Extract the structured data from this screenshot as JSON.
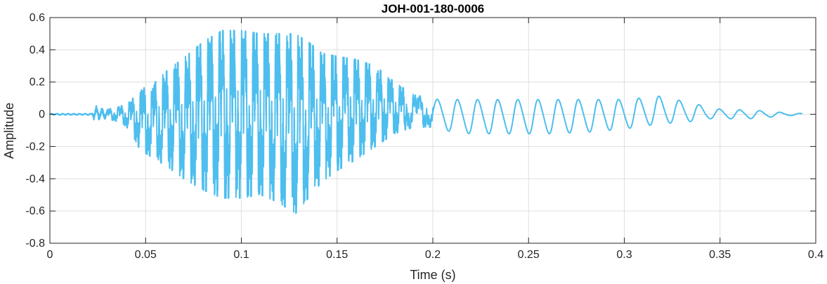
{
  "chart_data": {
    "type": "line",
    "title": "JOH-001-180-0006",
    "xlabel": "Time (s)",
    "ylabel": "Amplitude",
    "xlim": [
      0,
      0.4
    ],
    "ylim": [
      -0.8,
      0.6
    ],
    "xticks": [
      0,
      0.05,
      0.1,
      0.15,
      0.2,
      0.25,
      0.3,
      0.35,
      0.4
    ],
    "yticks": [
      -0.8,
      -0.6,
      -0.4,
      -0.2,
      0,
      0.2,
      0.4,
      0.6
    ],
    "xtick_labels": [
      "0",
      "0.05",
      "0.1",
      "0.15",
      "0.2",
      "0.25",
      "0.3",
      "0.35",
      "0.4"
    ],
    "ytick_labels": [
      "-0.8",
      "-0.6",
      "-0.4",
      "-0.2",
      "0",
      "0.2",
      "0.4",
      "0.6"
    ],
    "grid": true,
    "line_color": "#4DBEEE",
    "series": [
      {
        "x": [
          0,
          0.022,
          0.023,
          0.03,
          0.037,
          0.042,
          0.047,
          0.055,
          0.062,
          0.07,
          0.08,
          0.09,
          0.1,
          0.11,
          0.12,
          0.128,
          0.135,
          0.142,
          0.15,
          0.16,
          0.17,
          0.18,
          0.19,
          0.2,
          0.21,
          0.22,
          0.24,
          0.26,
          0.28,
          0.3,
          0.31,
          0.318,
          0.325,
          0.335,
          0.345,
          0.355,
          0.365,
          0.375,
          0.385,
          0.393
        ],
        "y_max": [
          0.005,
          0.005,
          0.06,
          0.03,
          0.05,
          0.08,
          0.15,
          0.2,
          0.28,
          0.35,
          0.45,
          0.52,
          0.52,
          0.5,
          0.5,
          0.5,
          0.45,
          0.38,
          0.36,
          0.34,
          0.3,
          0.2,
          0.12,
          0.1,
          0.1,
          0.1,
          0.1,
          0.1,
          0.1,
          0.1,
          0.11,
          0.12,
          0.1,
          0.08,
          0.04,
          0.03,
          0.03,
          0.02,
          0.01,
          0.005
        ],
        "y_min": [
          -0.005,
          -0.005,
          -0.04,
          -0.03,
          -0.05,
          -0.1,
          -0.22,
          -0.28,
          -0.33,
          -0.4,
          -0.47,
          -0.52,
          -0.52,
          -0.5,
          -0.55,
          -0.62,
          -0.52,
          -0.42,
          -0.35,
          -0.28,
          -0.2,
          -0.12,
          -0.08,
          -0.08,
          -0.12,
          -0.13,
          -0.13,
          -0.13,
          -0.12,
          -0.1,
          -0.08,
          -0.07,
          -0.06,
          -0.05,
          -0.03,
          -0.03,
          -0.03,
          -0.02,
          -0.01,
          -0.005
        ],
        "y_max_orig": [
          0.005,
          0.005,
          0.06,
          0.03,
          0.05,
          0.08,
          0.15,
          0.2,
          0.3,
          0.35,
          0.45,
          0.52,
          0.52,
          0.5,
          0.5,
          0.5,
          0.45,
          0.38,
          0.36,
          0.34,
          0.3,
          0.2,
          0.12,
          0.1,
          0.1,
          0.1,
          0.1,
          0.1,
          0.1,
          0.1,
          0.11,
          0.12,
          0.1,
          0.08,
          0.04,
          0.03,
          0.03,
          0.02,
          0.01,
          0.005
        ]
      }
    ]
  }
}
